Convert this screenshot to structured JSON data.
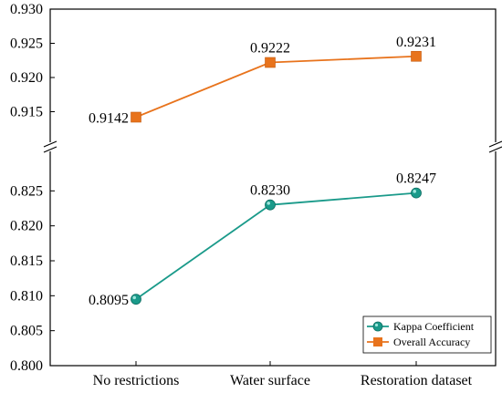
{
  "chart_data": {
    "type": "line",
    "categories": [
      "No restrictions",
      "Water surface",
      "Restoration dataset"
    ],
    "axis_break": true,
    "upper_panel": {
      "ylim": [
        0.91,
        0.93
      ],
      "yticks": [
        "0.930",
        "0.925",
        "0.920",
        "0.915"
      ]
    },
    "lower_panel": {
      "ylim": [
        0.8,
        0.829
      ],
      "yticks": [
        "0.825",
        "0.820",
        "0.815",
        "0.810",
        "0.805",
        "0.800"
      ]
    },
    "series": [
      {
        "name": "Overall Accuracy",
        "panel": "upper",
        "marker": "square",
        "color": "#E8731C",
        "values": [
          0.9142,
          0.9222,
          0.9231
        ],
        "labels": [
          "0.9142",
          "0.9222",
          "0.9231"
        ]
      },
      {
        "name": "Kappa Coefficient",
        "panel": "lower",
        "marker": "circle",
        "color": "#1A9A8A",
        "values": [
          0.8095,
          0.823,
          0.8247
        ],
        "labels": [
          "0.8095",
          "0.8230",
          "0.8247"
        ]
      }
    ],
    "legend": {
      "placement": "bottom-right",
      "entries": [
        "Kappa Coefficient",
        "Overall Accuracy"
      ]
    },
    "grid": false
  }
}
